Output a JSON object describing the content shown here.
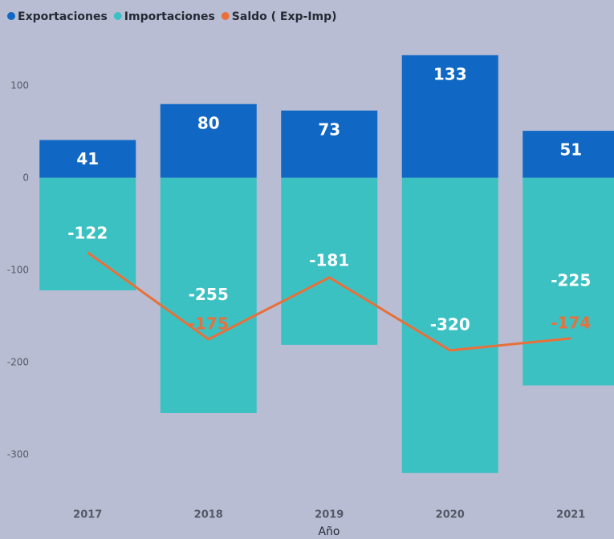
{
  "chart_data": {
    "type": "bar",
    "categories": [
      "2017",
      "2018",
      "2019",
      "2020",
      "2021"
    ],
    "x_label": "Año",
    "series": [
      {
        "name": "Exportaciones",
        "type": "bar",
        "color": "#1068c4",
        "values": [
          41,
          80,
          73,
          133,
          51
        ]
      },
      {
        "name": "Importaciones",
        "type": "bar",
        "color": "#3cc1c3",
        "values": [
          -122,
          -255,
          -181,
          -320,
          -225
        ]
      },
      {
        "name": "Saldo ( Exp-Imp)",
        "type": "line",
        "color": "#e8703a",
        "values": [
          -81,
          -175,
          -108,
          -187,
          -174
        ],
        "value_labels": [
          null,
          "-175",
          null,
          null,
          "-174"
        ]
      }
    ],
    "ylim": [
      -335,
      145
    ],
    "yticks": [
      -300,
      -200,
      -100,
      0,
      100
    ],
    "grid": false,
    "legend": "top-left"
  }
}
